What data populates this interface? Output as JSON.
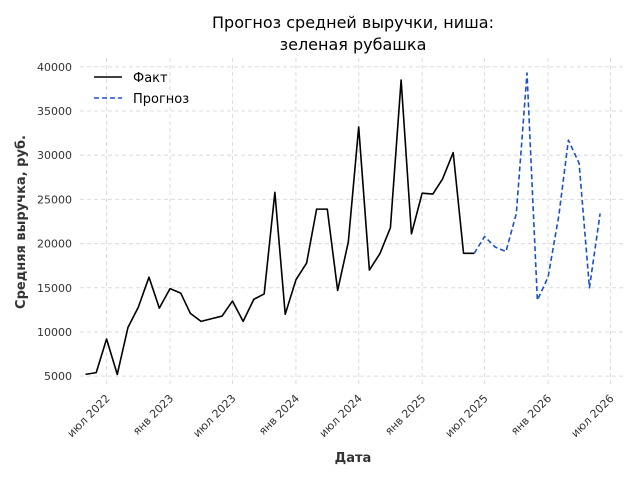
{
  "chart_data": {
    "type": "line",
    "title": [
      "Прогноз средней выручки, ниша:",
      "зеленая рубашка"
    ],
    "xlabel": "Дата",
    "ylabel": "Средняя выручка, руб.",
    "ylim": [
      4000,
      41000
    ],
    "yticks": [
      5000,
      10000,
      15000,
      20000,
      25000,
      30000,
      35000,
      40000
    ],
    "xlim": [
      "2022-04-15",
      "2026-08-15"
    ],
    "xticks": [
      {
        "date": "2022-07-01",
        "label": "июл 2022"
      },
      {
        "date": "2023-01-01",
        "label": "янв 2023"
      },
      {
        "date": "2023-07-01",
        "label": "июл 2023"
      },
      {
        "date": "2024-01-01",
        "label": "янв 2024"
      },
      {
        "date": "2024-07-01",
        "label": "июл 2024"
      },
      {
        "date": "2025-01-01",
        "label": "янв 2025"
      },
      {
        "date": "2025-07-01",
        "label": "июл 2025"
      },
      {
        "date": "2026-01-01",
        "label": "янв 2026"
      },
      {
        "date": "2026-07-01",
        "label": "июл 2026"
      }
    ],
    "grid": true,
    "legend_position": "top-left",
    "series": [
      {
        "name": "Факт",
        "color": "#000000",
        "style": "solid",
        "points": [
          [
            "2022-05-01",
            5200
          ],
          [
            "2022-06-01",
            5400
          ],
          [
            "2022-07-01",
            9200
          ],
          [
            "2022-08-01",
            5200
          ],
          [
            "2022-09-01",
            10500
          ],
          [
            "2022-10-01",
            12800
          ],
          [
            "2022-11-01",
            16200
          ],
          [
            "2022-12-01",
            12700
          ],
          [
            "2023-01-01",
            14900
          ],
          [
            "2023-02-01",
            14400
          ],
          [
            "2023-03-01",
            12100
          ],
          [
            "2023-04-01",
            11200
          ],
          [
            "2023-05-01",
            11500
          ],
          [
            "2023-06-01",
            11800
          ],
          [
            "2023-07-01",
            13500
          ],
          [
            "2023-08-01",
            11200
          ],
          [
            "2023-09-01",
            13700
          ],
          [
            "2023-10-01",
            14300
          ],
          [
            "2023-11-01",
            25800
          ],
          [
            "2023-12-01",
            12000
          ],
          [
            "2024-01-01",
            15900
          ],
          [
            "2024-02-01",
            17800
          ],
          [
            "2024-03-01",
            23900
          ],
          [
            "2024-04-01",
            23900
          ],
          [
            "2024-05-01",
            14700
          ],
          [
            "2024-06-01",
            20200
          ],
          [
            "2024-07-01",
            33200
          ],
          [
            "2024-08-01",
            17000
          ],
          [
            "2024-09-01",
            18900
          ],
          [
            "2024-10-01",
            21800
          ],
          [
            "2024-11-01",
            38500
          ],
          [
            "2024-12-01",
            21100
          ],
          [
            "2025-01-01",
            25700
          ],
          [
            "2025-02-01",
            25600
          ],
          [
            "2025-03-01",
            27300
          ],
          [
            "2025-04-01",
            30300
          ],
          [
            "2025-05-01",
            18900
          ],
          [
            "2025-06-01",
            18900
          ]
        ]
      },
      {
        "name": "Прогноз",
        "color": "#1a4fd0",
        "style": "dashed",
        "points": [
          [
            "2025-06-01",
            18900
          ],
          [
            "2025-07-01",
            20800
          ],
          [
            "2025-08-01",
            19600
          ],
          [
            "2025-09-01",
            19100
          ],
          [
            "2025-10-01",
            23400
          ],
          [
            "2025-11-01",
            39300
          ],
          [
            "2025-12-01",
            13600
          ],
          [
            "2026-01-01",
            16200
          ],
          [
            "2026-02-01",
            23100
          ],
          [
            "2026-03-01",
            31700
          ],
          [
            "2026-04-01",
            29100
          ],
          [
            "2026-05-01",
            15000
          ],
          [
            "2026-06-01",
            23400
          ]
        ]
      }
    ]
  }
}
